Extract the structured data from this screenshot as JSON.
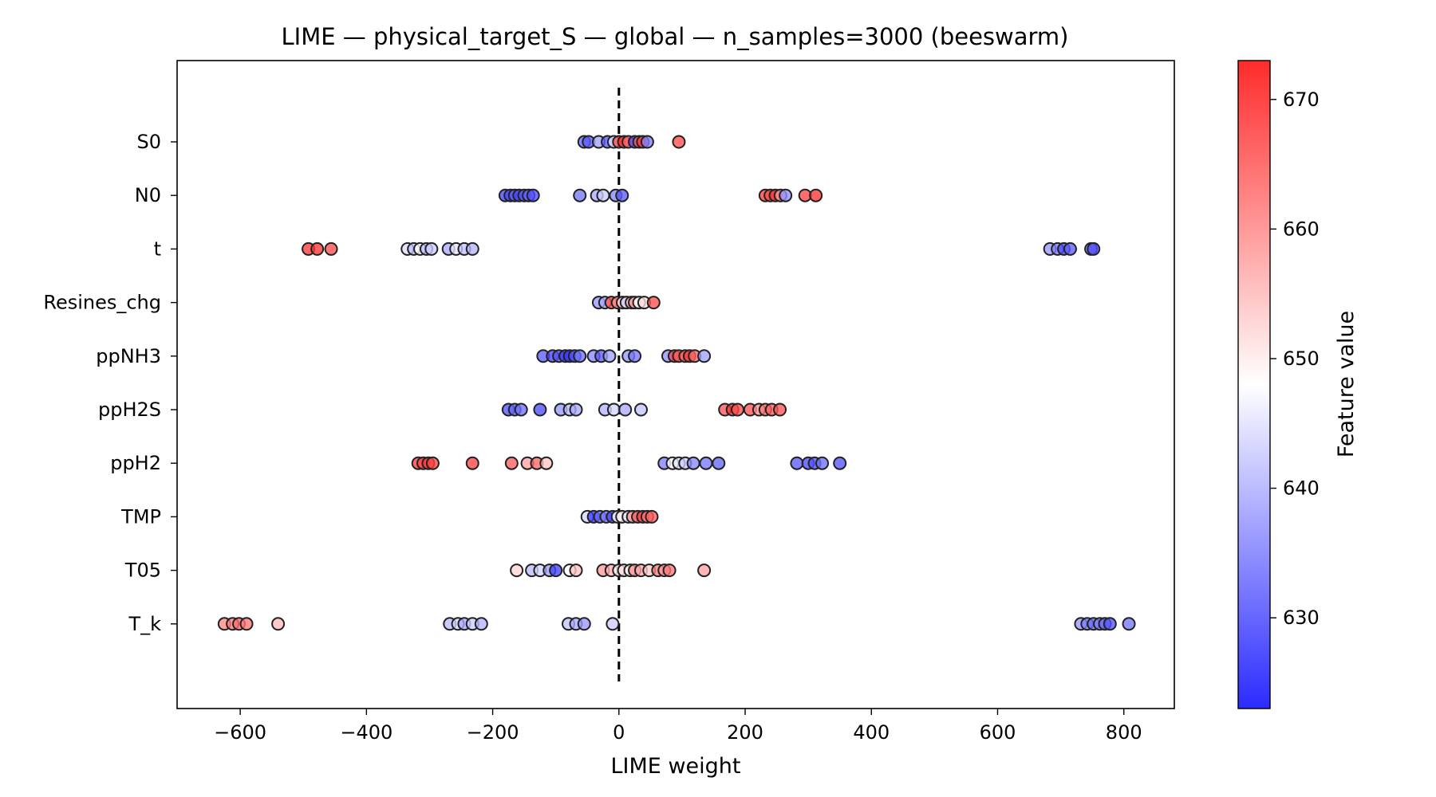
{
  "chart_data": {
    "type": "scatter",
    "subtype": "beeswarm",
    "title": "LIME — physical_target_S — global — n_samples=3000 (beeswarm)",
    "xlabel": "LIME weight",
    "ylabel": "",
    "xlim": [
      -700,
      880
    ],
    "xticks": [
      -600,
      -400,
      -200,
      0,
      200,
      400,
      600,
      800
    ],
    "xtick_labels": [
      "−600",
      "−400",
      "−200",
      "0",
      "200",
      "400",
      "600",
      "800"
    ],
    "zero_line": 0,
    "grid": false,
    "features": [
      "S0",
      "N0",
      "t",
      "Resines_chg",
      "ppNH3",
      "ppH2S",
      "ppH2",
      "TMP",
      "T05",
      "T_k"
    ],
    "colorbar": {
      "label": "Feature value",
      "min": 623,
      "max": 673,
      "ticks": [
        630,
        640,
        650,
        660,
        670
      ],
      "tick_labels": [
        "630",
        "640",
        "650",
        "660",
        "670"
      ],
      "colormap": "bwr",
      "low_color": "#2b2bff",
      "mid_color": "#ffffff",
      "high_color": "#ff2b2b"
    },
    "series": [
      {
        "feature": "S0",
        "points": [
          {
            "x": -55,
            "v": 630
          },
          {
            "x": -48,
            "v": 629
          },
          {
            "x": -32,
            "v": 637
          },
          {
            "x": -18,
            "v": 629
          },
          {
            "x": -8,
            "v": 645
          },
          {
            "x": 0,
            "v": 670
          },
          {
            "x": 8,
            "v": 672
          },
          {
            "x": 15,
            "v": 666
          },
          {
            "x": 25,
            "v": 627
          },
          {
            "x": 32,
            "v": 668
          },
          {
            "x": 38,
            "v": 671
          },
          {
            "x": 45,
            "v": 633
          },
          {
            "x": 95,
            "v": 669
          }
        ]
      },
      {
        "feature": "N0",
        "points": [
          {
            "x": -180,
            "v": 626
          },
          {
            "x": -172,
            "v": 627
          },
          {
            "x": -165,
            "v": 629
          },
          {
            "x": -158,
            "v": 626
          },
          {
            "x": -150,
            "v": 628
          },
          {
            "x": -143,
            "v": 630
          },
          {
            "x": -136,
            "v": 627
          },
          {
            "x": -62,
            "v": 632
          },
          {
            "x": -35,
            "v": 638
          },
          {
            "x": -25,
            "v": 642
          },
          {
            "x": -5,
            "v": 634
          },
          {
            "x": 5,
            "v": 629
          },
          {
            "x": 232,
            "v": 671
          },
          {
            "x": 240,
            "v": 669
          },
          {
            "x": 248,
            "v": 672
          },
          {
            "x": 256,
            "v": 661
          },
          {
            "x": 264,
            "v": 635
          },
          {
            "x": 295,
            "v": 670
          },
          {
            "x": 312,
            "v": 672
          }
        ]
      },
      {
        "feature": "t",
        "points": [
          {
            "x": -492,
            "v": 671
          },
          {
            "x": -478,
            "v": 672
          },
          {
            "x": -456,
            "v": 669
          },
          {
            "x": -335,
            "v": 644
          },
          {
            "x": -325,
            "v": 641
          },
          {
            "x": -315,
            "v": 648
          },
          {
            "x": -305,
            "v": 640
          },
          {
            "x": -297,
            "v": 642
          },
          {
            "x": -270,
            "v": 638
          },
          {
            "x": -258,
            "v": 645
          },
          {
            "x": -245,
            "v": 641
          },
          {
            "x": -232,
            "v": 639
          },
          {
            "x": 683,
            "v": 636
          },
          {
            "x": 695,
            "v": 633
          },
          {
            "x": 705,
            "v": 627
          },
          {
            "x": 715,
            "v": 629
          },
          {
            "x": 748,
            "v": 631
          },
          {
            "x": 752,
            "v": 627
          }
        ]
      },
      {
        "feature": "Resines_chg",
        "points": [
          {
            "x": -32,
            "v": 636
          },
          {
            "x": -22,
            "v": 638
          },
          {
            "x": -12,
            "v": 668
          },
          {
            "x": -2,
            "v": 662
          },
          {
            "x": 6,
            "v": 652
          },
          {
            "x": 12,
            "v": 643
          },
          {
            "x": 20,
            "v": 656
          },
          {
            "x": 25,
            "v": 660
          },
          {
            "x": 32,
            "v": 648
          },
          {
            "x": 40,
            "v": 652
          },
          {
            "x": 55,
            "v": 669
          }
        ]
      },
      {
        "feature": "ppNH3",
        "points": [
          {
            "x": -120,
            "v": 629
          },
          {
            "x": -105,
            "v": 626
          },
          {
            "x": -95,
            "v": 628
          },
          {
            "x": -85,
            "v": 625
          },
          {
            "x": -78,
            "v": 624
          },
          {
            "x": -70,
            "v": 628
          },
          {
            "x": -62,
            "v": 631
          },
          {
            "x": -40,
            "v": 634
          },
          {
            "x": -28,
            "v": 629
          },
          {
            "x": -15,
            "v": 637
          },
          {
            "x": 15,
            "v": 636
          },
          {
            "x": 25,
            "v": 632
          },
          {
            "x": 78,
            "v": 635
          },
          {
            "x": 88,
            "v": 670
          },
          {
            "x": 95,
            "v": 668
          },
          {
            "x": 105,
            "v": 667
          },
          {
            "x": 112,
            "v": 672
          },
          {
            "x": 120,
            "v": 666
          },
          {
            "x": 135,
            "v": 637
          }
        ]
      },
      {
        "feature": "ppH2S",
        "points": [
          {
            "x": -175,
            "v": 628
          },
          {
            "x": -165,
            "v": 630
          },
          {
            "x": -155,
            "v": 631
          },
          {
            "x": -125,
            "v": 627
          },
          {
            "x": -92,
            "v": 636
          },
          {
            "x": -78,
            "v": 640
          },
          {
            "x": -68,
            "v": 638
          },
          {
            "x": -22,
            "v": 639
          },
          {
            "x": -8,
            "v": 643
          },
          {
            "x": 10,
            "v": 638
          },
          {
            "x": 35,
            "v": 641
          },
          {
            "x": 168,
            "v": 668
          },
          {
            "x": 180,
            "v": 672
          },
          {
            "x": 188,
            "v": 669
          },
          {
            "x": 208,
            "v": 668
          },
          {
            "x": 222,
            "v": 661
          },
          {
            "x": 232,
            "v": 664
          },
          {
            "x": 242,
            "v": 667
          },
          {
            "x": 255,
            "v": 668
          }
        ]
      },
      {
        "feature": "ppH2",
        "points": [
          {
            "x": -318,
            "v": 671
          },
          {
            "x": -310,
            "v": 669
          },
          {
            "x": -302,
            "v": 672
          },
          {
            "x": -295,
            "v": 670
          },
          {
            "x": -232,
            "v": 670
          },
          {
            "x": -170,
            "v": 667
          },
          {
            "x": -145,
            "v": 659
          },
          {
            "x": -130,
            "v": 666
          },
          {
            "x": -115,
            "v": 655
          },
          {
            "x": 72,
            "v": 633
          },
          {
            "x": 85,
            "v": 648
          },
          {
            "x": 95,
            "v": 645
          },
          {
            "x": 105,
            "v": 642
          },
          {
            "x": 118,
            "v": 634
          },
          {
            "x": 138,
            "v": 632
          },
          {
            "x": 158,
            "v": 630
          },
          {
            "x": 282,
            "v": 629
          },
          {
            "x": 300,
            "v": 627
          },
          {
            "x": 310,
            "v": 628
          },
          {
            "x": 322,
            "v": 631
          },
          {
            "x": 350,
            "v": 628
          }
        ]
      },
      {
        "feature": "TMP",
        "points": [
          {
            "x": -50,
            "v": 643
          },
          {
            "x": -40,
            "v": 625
          },
          {
            "x": -30,
            "v": 630
          },
          {
            "x": -20,
            "v": 632
          },
          {
            "x": -10,
            "v": 626
          },
          {
            "x": -2,
            "v": 648
          },
          {
            "x": 5,
            "v": 650
          },
          {
            "x": 15,
            "v": 645
          },
          {
            "x": 22,
            "v": 660
          },
          {
            "x": 30,
            "v": 666
          },
          {
            "x": 38,
            "v": 670
          },
          {
            "x": 45,
            "v": 664
          },
          {
            "x": 52,
            "v": 667
          }
        ]
      },
      {
        "feature": "T05",
        "points": [
          {
            "x": -162,
            "v": 653
          },
          {
            "x": -138,
            "v": 640
          },
          {
            "x": -125,
            "v": 643
          },
          {
            "x": -110,
            "v": 637
          },
          {
            "x": -100,
            "v": 626
          },
          {
            "x": -78,
            "v": 648
          },
          {
            "x": -68,
            "v": 655
          },
          {
            "x": -25,
            "v": 660
          },
          {
            "x": -12,
            "v": 657
          },
          {
            "x": 0,
            "v": 649
          },
          {
            "x": 8,
            "v": 652
          },
          {
            "x": 18,
            "v": 650
          },
          {
            "x": 25,
            "v": 661
          },
          {
            "x": 35,
            "v": 658
          },
          {
            "x": 48,
            "v": 654
          },
          {
            "x": 62,
            "v": 663
          },
          {
            "x": 72,
            "v": 660
          },
          {
            "x": 80,
            "v": 664
          },
          {
            "x": 135,
            "v": 659
          }
        ]
      },
      {
        "feature": "T_k",
        "points": [
          {
            "x": -625,
            "v": 662
          },
          {
            "x": -612,
            "v": 663
          },
          {
            "x": -602,
            "v": 665
          },
          {
            "x": -590,
            "v": 664
          },
          {
            "x": -540,
            "v": 656
          },
          {
            "x": -268,
            "v": 640
          },
          {
            "x": -255,
            "v": 643
          },
          {
            "x": -245,
            "v": 638
          },
          {
            "x": -232,
            "v": 642
          },
          {
            "x": -218,
            "v": 639
          },
          {
            "x": -80,
            "v": 641
          },
          {
            "x": -68,
            "v": 638
          },
          {
            "x": -55,
            "v": 636
          },
          {
            "x": -10,
            "v": 642
          },
          {
            "x": 732,
            "v": 636
          },
          {
            "x": 742,
            "v": 633
          },
          {
            "x": 752,
            "v": 631
          },
          {
            "x": 762,
            "v": 633
          },
          {
            "x": 770,
            "v": 630
          },
          {
            "x": 778,
            "v": 628
          },
          {
            "x": 808,
            "v": 632
          }
        ]
      }
    ]
  }
}
